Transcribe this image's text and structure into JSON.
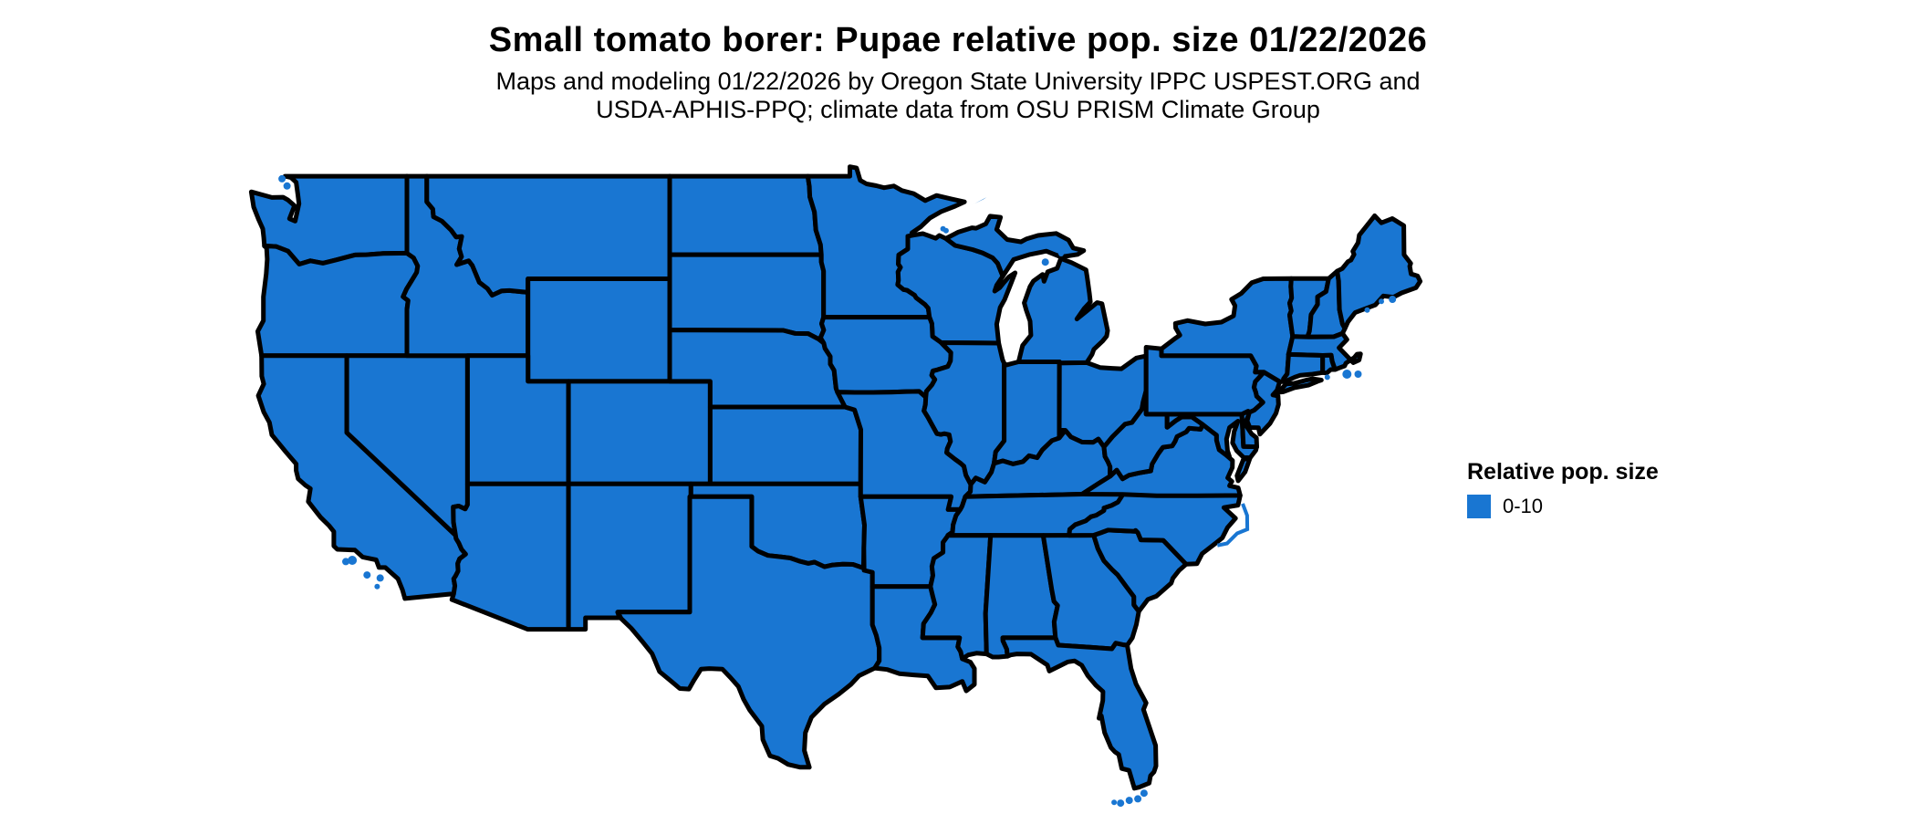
{
  "header": {
    "title": "Small tomato borer: Pupae relative pop. size 01/22/2026",
    "subtitle_line1": "Maps and modeling 01/22/2026 by Oregon State University IPPC USPEST.ORG and",
    "subtitle_line2": "USDA-APHIS-PPQ; climate data from OSU PRISM Climate Group"
  },
  "legend": {
    "title": "Relative pop. size",
    "items": [
      {
        "label": "0-10",
        "color": "#1976D2"
      }
    ]
  },
  "map": {
    "region": "contiguous United States",
    "fill_color": "#1976D2",
    "border_color": "#000000",
    "background_color": "#FFFFFF"
  }
}
